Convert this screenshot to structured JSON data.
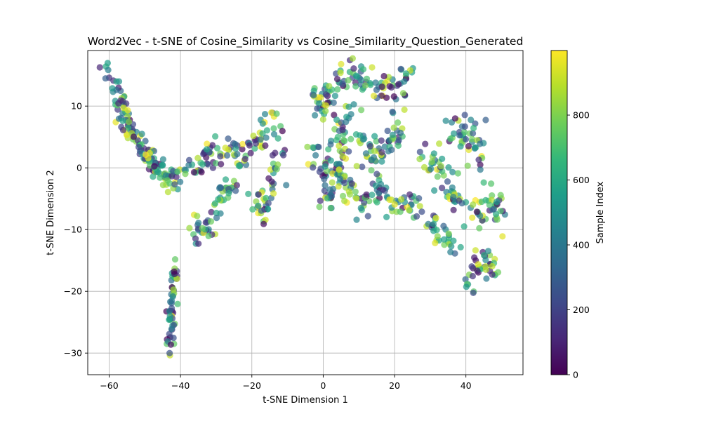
{
  "chart_data": {
    "type": "scatter",
    "title": "Word2Vec - t-SNE of Cosine_Similarity vs Cosine_Similarity_Question_Generated",
    "xlabel": "t-SNE Dimension 1",
    "ylabel": "t-SNE Dimension 2",
    "xlim": [
      -66,
      56
    ],
    "ylim": [
      -33.5,
      19
    ],
    "xticks": [
      -60,
      -40,
      -20,
      0,
      20,
      40
    ],
    "yticks": [
      -30,
      -20,
      -10,
      0,
      10
    ],
    "xtick_labels": [
      "−60",
      "−40",
      "−20",
      "0",
      "20",
      "40"
    ],
    "ytick_labels": [
      "−30",
      "−20",
      "−10",
      "0",
      "10"
    ],
    "grid": true,
    "colorbar": {
      "label": "Sample Index",
      "range": [
        0,
        999
      ],
      "ticks": [
        0,
        200,
        400,
        600,
        800
      ],
      "tick_labels": [
        "0",
        "200",
        "400",
        "600",
        "800"
      ],
      "colormap": "viridis"
    },
    "colors": {
      "viridis": [
        "#440154",
        "#482878",
        "#3e4989",
        "#31688e",
        "#26828e",
        "#1f9e89",
        "#35b779",
        "#6ece58",
        "#b5de2b",
        "#fde725"
      ],
      "grid": "#b0b0b0",
      "marker_alpha": "0.7"
    },
    "approx_point_count": 1000,
    "cluster_paths": [
      {
        "path": [
          [
            -60.5,
            16
          ],
          [
            -58,
            13
          ],
          [
            -55,
            8
          ],
          [
            -52,
            4
          ],
          [
            -48,
            1
          ],
          [
            -45,
            -1
          ],
          [
            -42,
            -2
          ],
          [
            -40,
            -1
          ]
        ],
        "n": 150,
        "spread": 0.9
      },
      {
        "path": [
          [
            -43,
            -30
          ],
          [
            -42.6,
            -25
          ],
          [
            -42.2,
            -20
          ],
          [
            -41.5,
            -16
          ]
        ],
        "n": 55,
        "spread": 0.55
      },
      {
        "path": [
          [
            -38,
            -1
          ],
          [
            -33,
            1
          ],
          [
            -27,
            2.5
          ],
          [
            -22,
            2
          ],
          [
            -18,
            5
          ],
          [
            -15,
            7
          ],
          [
            -12,
            8
          ]
        ],
        "n": 90,
        "spread": 1.3
      },
      {
        "path": [
          [
            -37,
            -9
          ],
          [
            -35,
            -11
          ],
          [
            -32,
            -10
          ],
          [
            -30,
            -6
          ],
          [
            -27,
            -3
          ],
          [
            -24,
            -3
          ]
        ],
        "n": 55,
        "spread": 1.1
      },
      {
        "path": [
          [
            -19,
            -5
          ],
          [
            -17,
            -8
          ],
          [
            -15,
            -4
          ],
          [
            -13,
            0
          ],
          [
            -12,
            4
          ]
        ],
        "n": 45,
        "spread": 1.2
      },
      {
        "path": [
          [
            -3,
            12
          ],
          [
            0,
            10
          ],
          [
            3,
            13
          ],
          [
            7,
            14
          ],
          [
            11,
            15
          ],
          [
            15,
            14
          ],
          [
            18,
            12
          ],
          [
            22,
            13
          ],
          [
            25,
            16
          ]
        ],
        "n": 110,
        "spread": 1.3
      },
      {
        "path": [
          [
            -3,
            3
          ],
          [
            0,
            0
          ],
          [
            2,
            -3
          ],
          [
            4,
            3
          ],
          [
            6,
            7
          ],
          [
            9,
            9
          ]
        ],
        "n": 70,
        "spread": 1.6
      },
      {
        "path": [
          [
            -1,
            -6
          ],
          [
            2,
            -4
          ],
          [
            5,
            -1
          ],
          [
            8,
            -3
          ],
          [
            10,
            -7
          ],
          [
            12,
            -5
          ]
        ],
        "n": 50,
        "spread": 1.3
      },
      {
        "path": [
          [
            8,
            4
          ],
          [
            12,
            3
          ],
          [
            16,
            2
          ],
          [
            19,
            5
          ],
          [
            21,
            7
          ]
        ],
        "n": 60,
        "spread": 1.5
      },
      {
        "path": [
          [
            13,
            -2
          ],
          [
            17,
            -4
          ],
          [
            20,
            -6
          ],
          [
            24,
            -6
          ],
          [
            27,
            -5
          ]
        ],
        "n": 50,
        "spread": 1.3
      },
      {
        "path": [
          [
            28,
            3
          ],
          [
            31,
            1
          ],
          [
            34,
            -2
          ],
          [
            37,
            -5
          ],
          [
            39,
            -7
          ]
        ],
        "n": 50,
        "spread": 1.5
      },
      {
        "path": [
          [
            35,
            6
          ],
          [
            38,
            5
          ],
          [
            41,
            6
          ],
          [
            43,
            3
          ],
          [
            44,
            -1
          ]
        ],
        "n": 45,
        "spread": 1.4
      },
      {
        "path": [
          [
            30,
            -9
          ],
          [
            33,
            -11
          ],
          [
            36,
            -12
          ],
          [
            38,
            -13
          ]
        ],
        "n": 30,
        "spread": 1.1
      },
      {
        "path": [
          [
            42,
            -6
          ],
          [
            45,
            -8
          ],
          [
            48,
            -6
          ],
          [
            50,
            -8
          ]
        ],
        "n": 40,
        "spread": 1.3
      },
      {
        "path": [
          [
            41,
            -19
          ],
          [
            43,
            -16
          ],
          [
            45,
            -14
          ],
          [
            47,
            -16
          ],
          [
            48,
            -18
          ]
        ],
        "n": 40,
        "spread": 0.9
      }
    ]
  }
}
